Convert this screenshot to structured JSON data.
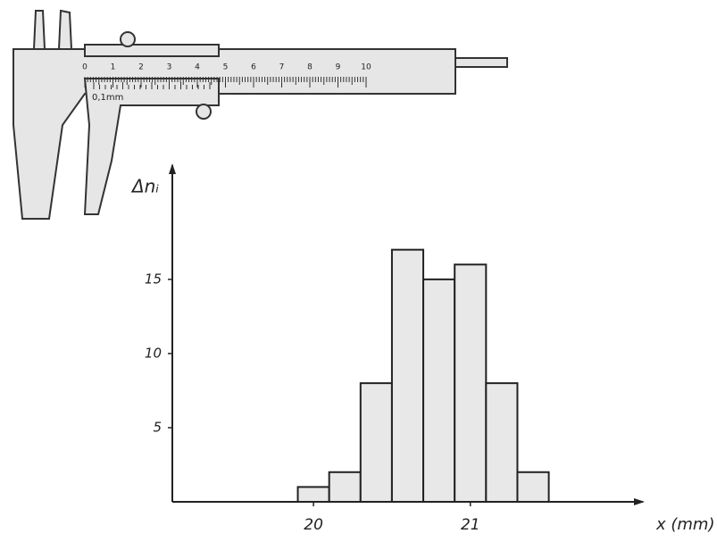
{
  "chart_data": {
    "type": "histogram",
    "y_label": "Δnᵢ",
    "x_label": "x (mm)",
    "bins": [
      19.9,
      20.1,
      20.3,
      20.5,
      20.7,
      20.9,
      21.1,
      21.3,
      21.5
    ],
    "values": [
      1,
      2,
      8,
      17,
      15,
      16,
      8,
      2
    ],
    "color": "#e8e8e8",
    "xlim": [
      19.1,
      22.1
    ],
    "xticks": [
      20,
      21
    ],
    "ylim": [
      0,
      22.7
    ],
    "yticks": [
      5,
      10,
      15
    ]
  },
  "illustration": {
    "scale_labels": [
      "0",
      "1",
      "2",
      "3",
      "4",
      "5",
      "6",
      "7",
      "8",
      "9",
      "10"
    ],
    "vernier_label": "0,1mm"
  }
}
